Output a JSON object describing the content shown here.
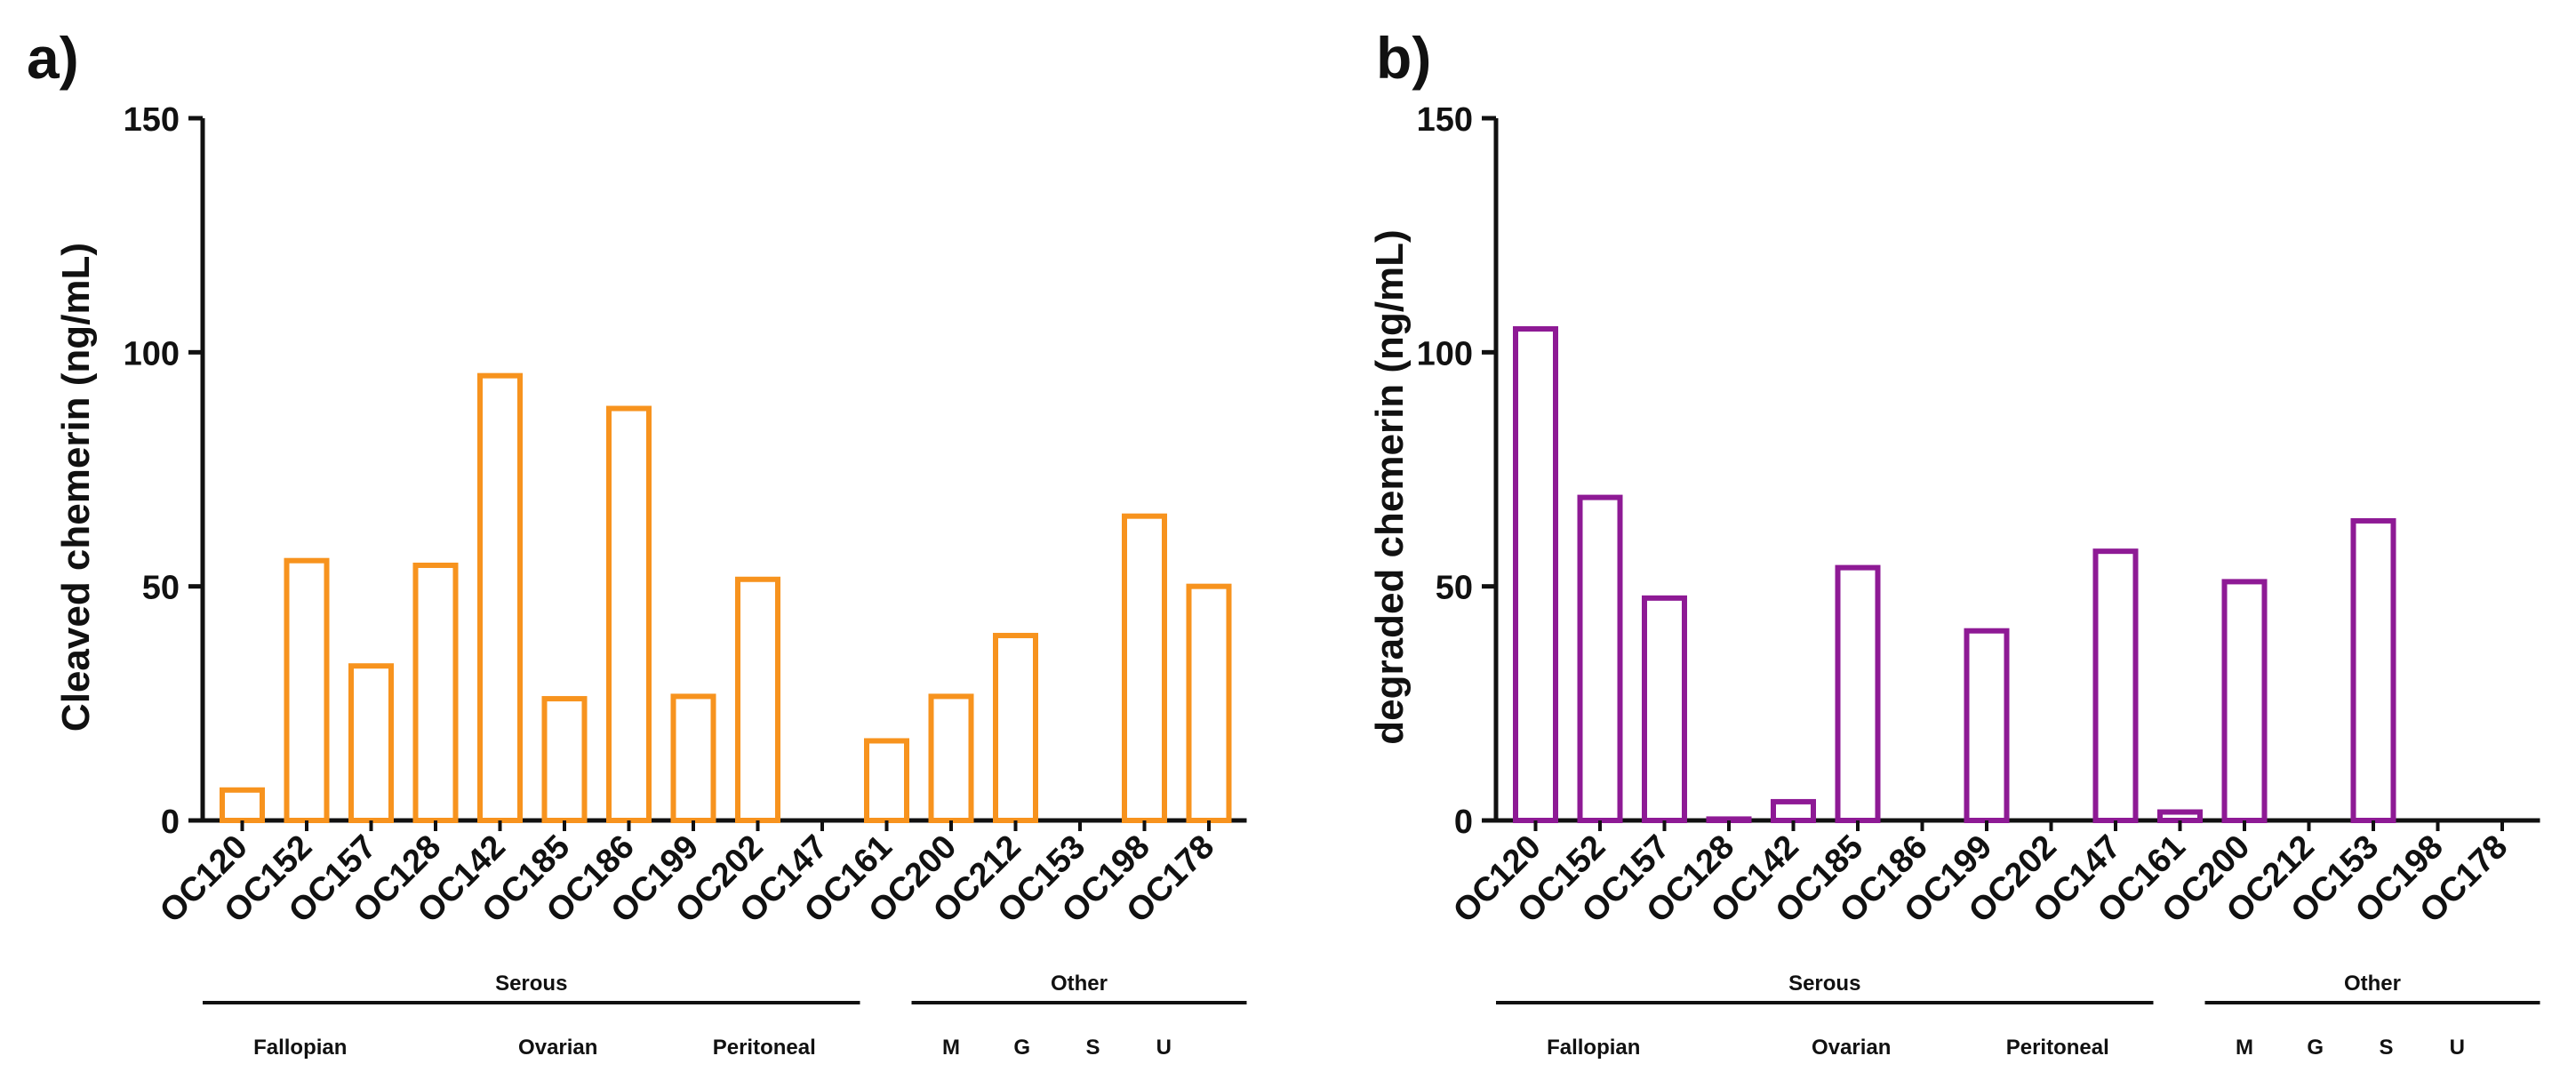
{
  "chart_data": [
    {
      "type": "bar",
      "panel_label": "a)",
      "ylabel": "Cleaved chemerin (ng/mL)",
      "xlabel": "",
      "ylim": [
        0,
        150
      ],
      "yticks": [
        0,
        50,
        100,
        150
      ],
      "bar_color": "#F7931E",
      "categories": [
        "OC120",
        "OC152",
        "OC157",
        "OC128",
        "OC142",
        "OC185",
        "OC186",
        "OC199",
        "OC202",
        "OC147",
        "OC161",
        "OC200",
        "OC212",
        "OC153",
        "OC198",
        "OC178"
      ],
      "values": [
        6.5,
        55.5,
        33,
        54.5,
        95,
        26,
        88,
        26.5,
        51.5,
        0,
        17,
        26.5,
        39.5,
        0,
        65,
        50
      ],
      "groups": {
        "serous": {
          "label": "Serous",
          "start_index": 0,
          "end_index": 9,
          "subgroups": [
            {
              "label": "Fallopian",
              "index": 0.9
            },
            {
              "label": "Ovarian",
              "index": 4.9
            },
            {
              "label": "Peritoneal",
              "index": 8.1
            }
          ]
        },
        "other": {
          "label": "Other",
          "start_index": 11,
          "end_index": 15,
          "subgroups": [
            {
              "label": "M",
              "index": 11.0
            },
            {
              "label": "G",
              "index": 12.1
            },
            {
              "label": "S",
              "index": 13.2
            },
            {
              "label": "U",
              "index": 14.3
            }
          ]
        }
      }
    },
    {
      "type": "bar",
      "panel_label": "b)",
      "ylabel": "degraded chemerin (ng/mL)",
      "xlabel": "",
      "ylim": [
        0,
        150
      ],
      "yticks": [
        0,
        50,
        100,
        150
      ],
      "bar_color": "#8E1A95",
      "categories": [
        "OC120",
        "OC152",
        "OC157",
        "OC128",
        "OC142",
        "OC185",
        "OC186",
        "OC199",
        "OC202",
        "OC147",
        "OC161",
        "OC200",
        "OC212",
        "OC153",
        "OC198",
        "OC178"
      ],
      "values": [
        105,
        69,
        47.5,
        0.3,
        4,
        54,
        0,
        40.5,
        0,
        57.5,
        1.8,
        51,
        0,
        64,
        0,
        0
      ],
      "groups": {
        "serous": {
          "label": "Serous",
          "start_index": 0,
          "end_index": 9,
          "subgroups": [
            {
              "label": "Fallopian",
              "index": 0.9
            },
            {
              "label": "Ovarian",
              "index": 4.9
            },
            {
              "label": "Peritoneal",
              "index": 8.1
            }
          ]
        },
        "other": {
          "label": "Other",
          "start_index": 11,
          "end_index": 15,
          "subgroups": [
            {
              "label": "M",
              "index": 11.0
            },
            {
              "label": "G",
              "index": 12.1
            },
            {
              "label": "S",
              "index": 13.2
            },
            {
              "label": "U",
              "index": 14.3
            }
          ]
        }
      }
    }
  ]
}
